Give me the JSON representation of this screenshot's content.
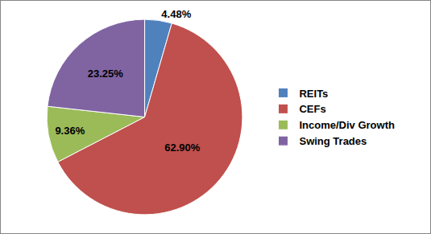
{
  "chart_data": {
    "type": "pie",
    "categories": [
      "REITs",
      "CEFs",
      "Income/Div Growth",
      "Swing Trades"
    ],
    "values": [
      4.48,
      62.9,
      9.36,
      23.25
    ],
    "value_labels": [
      "4.48%",
      "62.90%",
      "9.36%",
      "23.25%"
    ],
    "colors": [
      "#4f81bd",
      "#c0504d",
      "#9bbb59",
      "#8064a2"
    ],
    "data_labels": true,
    "legend": "right"
  }
}
